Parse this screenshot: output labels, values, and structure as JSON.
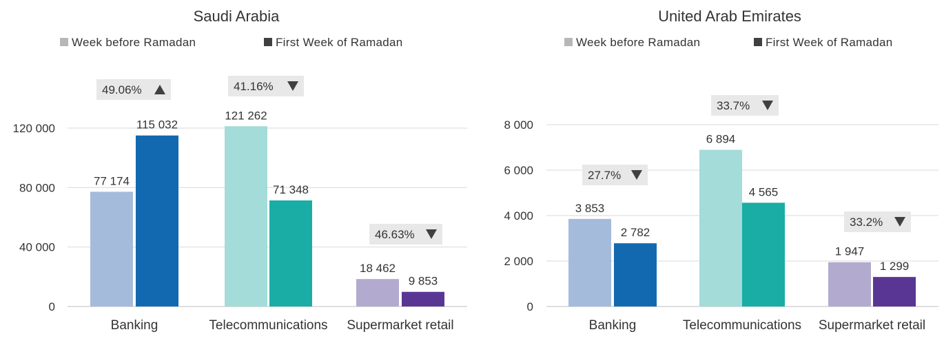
{
  "chart_data": [
    {
      "type": "bar",
      "title": "Saudi Arabia",
      "categories": [
        "Banking",
        "Telecommunications",
        "Supermarket retail"
      ],
      "legend": [
        "Week before Ramadan",
        "First Week of Ramadan"
      ],
      "series": [
        {
          "name": "Week before Ramadan",
          "values": [
            77174,
            121262,
            18462
          ],
          "value_labels": [
            "77 174",
            "121 262",
            "18 462"
          ],
          "colors": [
            "#a5bbdc",
            "#a3dcd9",
            "#b3aacf"
          ]
        },
        {
          "name": "First Week of Ramadan",
          "values": [
            115032,
            71348,
            9853
          ],
          "value_labels": [
            "115 032",
            "71 348",
            "9 853"
          ],
          "colors": [
            "#1269b0",
            "#1aada6",
            "#5a3694"
          ]
        }
      ],
      "changes": [
        {
          "label": "49.06%",
          "direction": "up"
        },
        {
          "label": "41.16%",
          "direction": "down"
        },
        {
          "label": "46.63%",
          "direction": "down"
        }
      ],
      "yticks": [
        0,
        40000,
        80000,
        120000
      ],
      "ytick_labels": [
        "0",
        "40 000",
        "80 000",
        "120 000"
      ],
      "ylim": [
        0,
        120000
      ],
      "grid": true,
      "legend_position": "top"
    },
    {
      "type": "bar",
      "title": "United Arab Emirates",
      "categories": [
        "Banking",
        "Telecommunications",
        "Supermarket retail"
      ],
      "legend": [
        "Week before Ramadan",
        "First Week of Ramadan"
      ],
      "series": [
        {
          "name": "Week before Ramadan",
          "values": [
            3853,
            6894,
            1947
          ],
          "value_labels": [
            "3 853",
            "6 894",
            "1 947"
          ],
          "colors": [
            "#a5bbdc",
            "#a3dcd9",
            "#b3aacf"
          ]
        },
        {
          "name": "First Week of Ramadan",
          "values": [
            2782,
            4565,
            1299
          ],
          "value_labels": [
            "2 782",
            "4 565",
            "1 299"
          ],
          "colors": [
            "#1269b0",
            "#1aada6",
            "#5a3694"
          ]
        }
      ],
      "changes": [
        {
          "label": "27.7%",
          "direction": "down"
        },
        {
          "label": "33.7%",
          "direction": "down"
        },
        {
          "label": "33.2%",
          "direction": "down"
        }
      ],
      "yticks": [
        0,
        2000,
        4000,
        6000,
        8000
      ],
      "ytick_labels": [
        "0",
        "2 000",
        "4 000",
        "6 000",
        "8 000"
      ],
      "ylim": [
        0,
        8000
      ],
      "grid": true,
      "legend_position": "top"
    }
  ],
  "colors": {
    "legend_light": "#b7b7b7",
    "legend_dark": "#404040",
    "badge_bg": "#e8e8e8",
    "text": "#333333"
  }
}
